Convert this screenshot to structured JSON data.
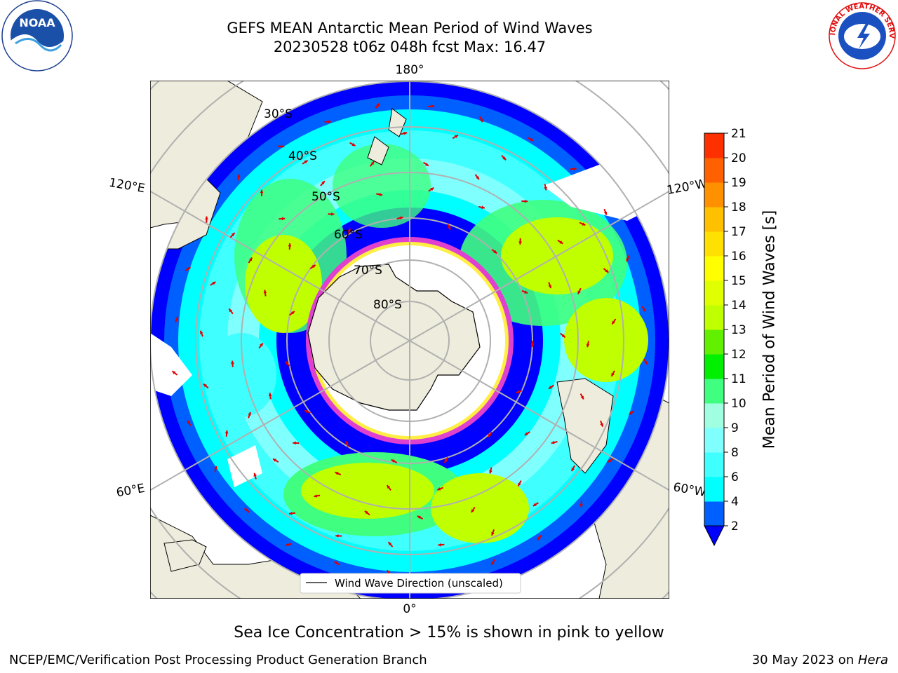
{
  "title": {
    "line1": "GEFS MEAN Antarctic Mean Period of Wind Waves",
    "line2": "20230528 t06z 048h fcst   Max: 16.47"
  },
  "logos": {
    "left": {
      "icon": "noaa-logo",
      "text": "NOAA"
    },
    "right": {
      "icon": "nws-logo",
      "text": "NATIONAL WEATHER SERVICE"
    }
  },
  "map": {
    "projection": "south-polar-stereographic",
    "longitude_labels": {
      "top": "180°",
      "bottom": "0°",
      "upper_left": "120°E",
      "upper_right": "120°W",
      "lower_left": "60°E",
      "lower_right": "60°W"
    },
    "latitude_labels": [
      "30°S",
      "40°S",
      "50°S",
      "60°S",
      "70°S",
      "80°S"
    ],
    "legend": "Wind Wave Direction (unscaled)",
    "colors": {
      "land": "#eeecdc",
      "ocean_missing": "#ffffff",
      "ice_edge": "#e040d0",
      "arrow": "#e00000",
      "grid": "#b0b0b0"
    }
  },
  "colorbar": {
    "label": "Mean Period of Wind Waves [s]",
    "ticks": [
      "2",
      "4",
      "6",
      "8",
      "9",
      "10",
      "11",
      "12",
      "13",
      "14",
      "15",
      "16",
      "17",
      "18",
      "19",
      "20",
      "21"
    ],
    "colors": [
      "#0060ff",
      "#00ffff",
      "#40ffff",
      "#80ffff",
      "#a0ffe0",
      "#40ff80",
      "#00f000",
      "#60f000",
      "#c0ff00",
      "#e0ff00",
      "#ffff00",
      "#ffe000",
      "#ffc000",
      "#ff9000",
      "#ff6000",
      "#ff3000"
    ],
    "extend_color": "#0000ff"
  },
  "ice_note": "Sea Ice Concentration > 15% is shown in pink to yellow",
  "footer": {
    "left": "NCEP/EMC/Verification Post Processing Product Generation Branch",
    "right_date": "30 May 2023 on ",
    "right_host": "Hera"
  }
}
